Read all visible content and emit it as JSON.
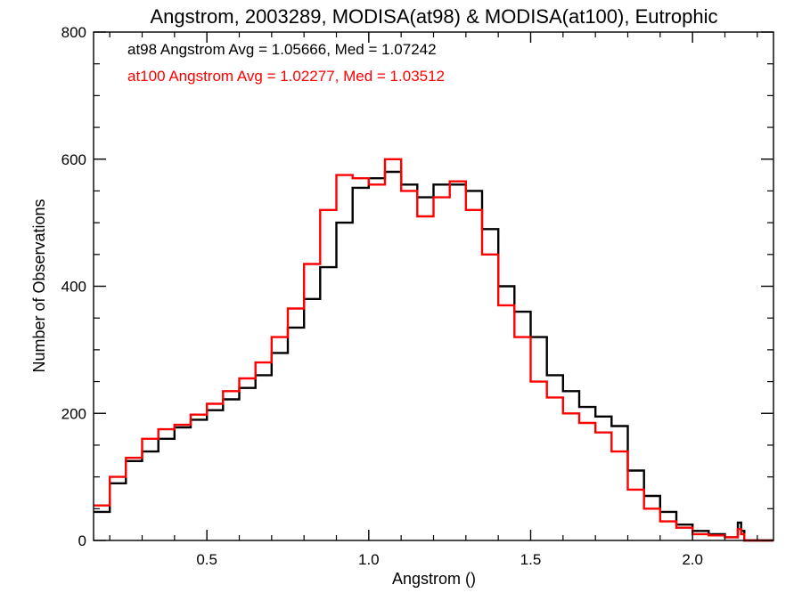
{
  "chart_data": {
    "type": "line",
    "step": true,
    "title": "Angstrom, 2003289, MODISA(at98) & MODISA(at100), Eutrophic",
    "xlabel": "Angstrom ()",
    "ylabel": "Number of Observations",
    "xlim": [
      0.15,
      2.25
    ],
    "ylim": [
      0,
      800
    ],
    "xticks": [
      0.5,
      1.0,
      1.5,
      2.0
    ],
    "xtick_labels": [
      "0.5",
      "1.0",
      "1.5",
      "2.0"
    ],
    "yticks": [
      0,
      200,
      400,
      600,
      800
    ],
    "ytick_labels": [
      "0",
      "200",
      "400",
      "600",
      "800"
    ],
    "grid": false,
    "annotations": [
      {
        "text": "at98 Angstrom Avg = 1.05666, Med = 1.07242",
        "color": "#000000"
      },
      {
        "text": "at100 Angstrom Avg = 1.02277, Med = 1.03512",
        "color": "#ff0000"
      }
    ],
    "series": [
      {
        "color": "#000000",
        "x": [
          0.15,
          0.2,
          0.25,
          0.3,
          0.35,
          0.4,
          0.45,
          0.5,
          0.55,
          0.6,
          0.65,
          0.7,
          0.75,
          0.8,
          0.85,
          0.9,
          0.95,
          1.0,
          1.05,
          1.1,
          1.15,
          1.2,
          1.25,
          1.3,
          1.35,
          1.4,
          1.45,
          1.5,
          1.55,
          1.6,
          1.65,
          1.7,
          1.75,
          1.8,
          1.85,
          1.9,
          1.95,
          2.0,
          2.05,
          2.1,
          2.14,
          2.15,
          2.16,
          2.25
        ],
        "y": [
          45,
          90,
          125,
          140,
          160,
          178,
          190,
          205,
          222,
          240,
          260,
          295,
          335,
          380,
          430,
          500,
          555,
          570,
          580,
          560,
          540,
          560,
          560,
          550,
          490,
          400,
          360,
          320,
          260,
          235,
          210,
          195,
          180,
          110,
          70,
          45,
          25,
          15,
          10,
          5,
          28,
          15,
          0,
          0
        ]
      },
      {
        "color": "#ff0000",
        "x": [
          0.15,
          0.2,
          0.25,
          0.3,
          0.35,
          0.4,
          0.45,
          0.5,
          0.55,
          0.6,
          0.65,
          0.7,
          0.75,
          0.8,
          0.85,
          0.9,
          0.95,
          1.0,
          1.05,
          1.1,
          1.15,
          1.2,
          1.25,
          1.3,
          1.35,
          1.4,
          1.45,
          1.5,
          1.55,
          1.6,
          1.65,
          1.7,
          1.75,
          1.8,
          1.85,
          1.9,
          1.95,
          2.0,
          2.05,
          2.1,
          2.14,
          2.15,
          2.16,
          2.25
        ],
        "y": [
          55,
          100,
          130,
          160,
          175,
          182,
          198,
          215,
          235,
          255,
          280,
          320,
          365,
          435,
          520,
          575,
          570,
          560,
          600,
          550,
          510,
          540,
          565,
          520,
          450,
          370,
          320,
          250,
          225,
          200,
          185,
          170,
          140,
          80,
          50,
          30,
          20,
          10,
          8,
          5,
          18,
          10,
          0,
          0
        ]
      }
    ]
  }
}
